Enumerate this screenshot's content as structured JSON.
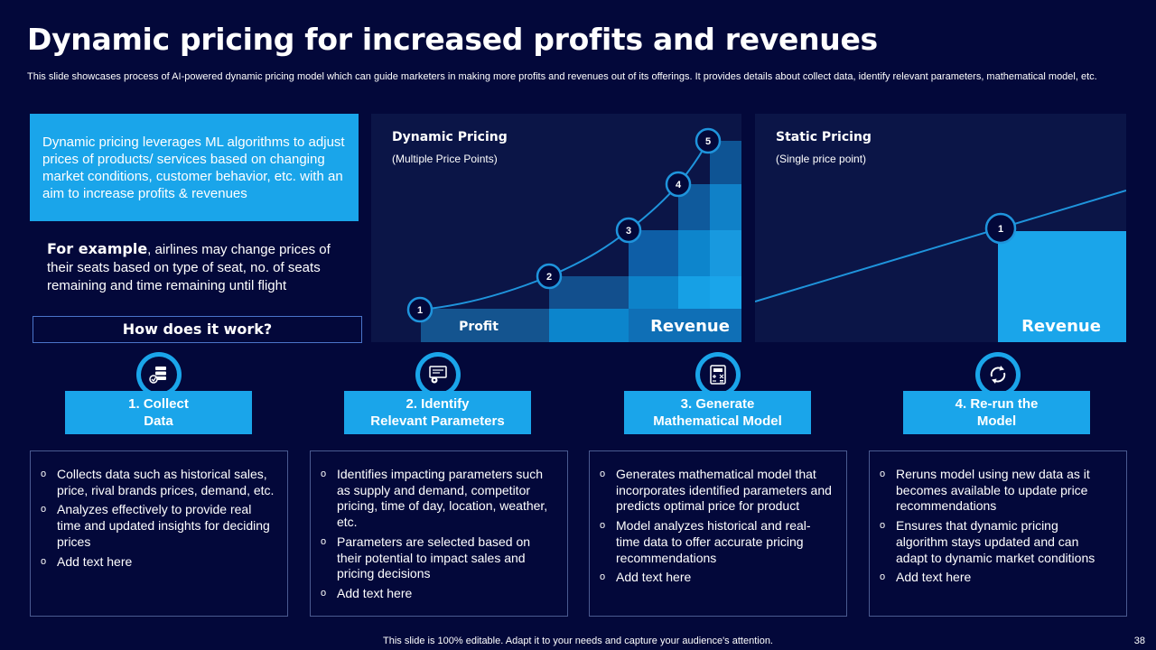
{
  "title": "Dynamic pricing for increased profits and revenues",
  "subtitle": "This slide showcases process of AI-powered dynamic pricing model which can guide marketers in making more profits and revenues out of its offerings. It provides details about collect data, identify relevant parameters, mathematical model, etc.",
  "definition": "Dynamic pricing leverages ML algorithms to adjust prices of products/ services based on changing market conditions, customer behavior, etc. with an aim to increase profits & revenues",
  "example": {
    "lead": "For example",
    "text": ", airlines may change prices of their seats based on type of seat, no. of seats remaining and time remaining until flight"
  },
  "how_label": "How does it work?",
  "colors": {
    "background": "#03083a",
    "accent": "#1aa5ea",
    "panel": "#0b1547"
  },
  "dynamic_panel": {
    "title": "Dynamic Pricing",
    "subtitle": "(Multiple Price Points)",
    "profit_label": "Profit",
    "revenue_label": "Revenue",
    "points": [
      "1",
      "2",
      "3",
      "4",
      "5"
    ]
  },
  "static_panel": {
    "title": "Static Pricing",
    "subtitle": "(Single price point)",
    "revenue_label": "Revenue",
    "point": "1"
  },
  "steps": [
    {
      "icon": "database-icon",
      "heading": "1. Collect\nData",
      "bullets": [
        "Collects data such as historical sales, price, rival brands prices, demand, etc.",
        "Analyzes effectively to provide real time and updated insights for deciding prices",
        "Add text here"
      ]
    },
    {
      "icon": "settings-screen-icon",
      "heading": "2. Identify\nRelevant Parameters",
      "bullets": [
        "Identifies impacting parameters such as supply and demand, competitor pricing, time of day, location, weather, etc.",
        "Parameters are selected based on their potential to impact sales and pricing decisions",
        "Add text here"
      ]
    },
    {
      "icon": "calculator-icon",
      "heading": "3. Generate\nMathematical Model",
      "bullets": [
        "Generates mathematical model that incorporates identified parameters and predicts optimal price for product",
        "Model analyzes historical and real-time data to offer accurate pricing recommendations",
        "Add text here"
      ]
    },
    {
      "icon": "refresh-icon",
      "heading": "4. Re-run the\nModel",
      "bullets": [
        "Reruns model using new data as it becomes available to update price recommendations",
        "Ensures that dynamic pricing algorithm stays updated and can adapt to dynamic market conditions",
        "Add text here"
      ]
    }
  ],
  "footer": "This slide is 100% editable. Adapt it to your needs and capture your audience's attention.",
  "page_number": "38"
}
